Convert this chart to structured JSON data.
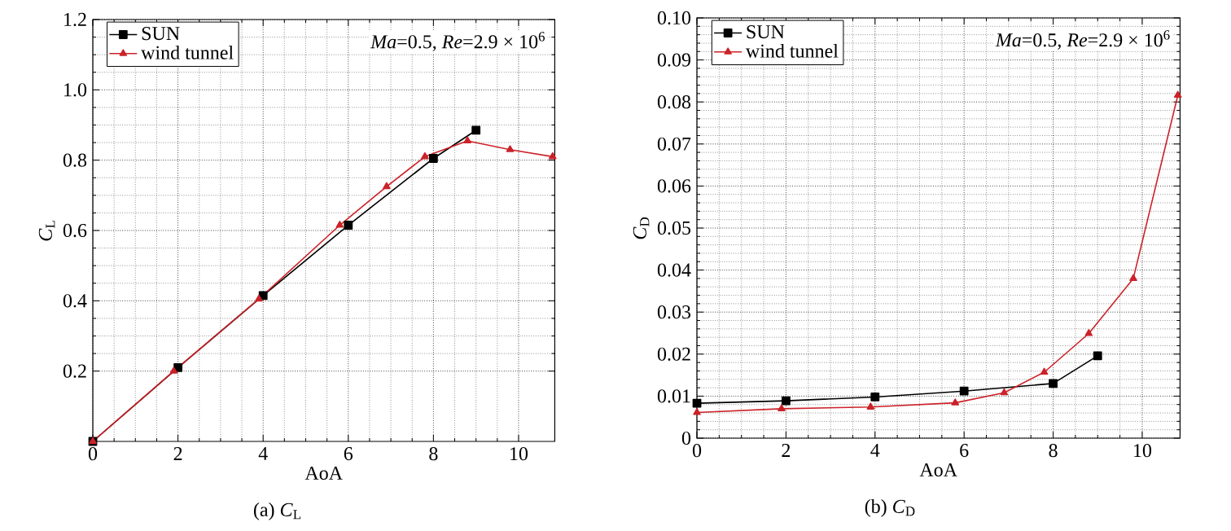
{
  "chart_data": [
    {
      "type": "line",
      "title": "(a) *C*$_{L}$",
      "xlabel": "AoA",
      "ylabel": "*C*$_{L}$",
      "annotations": [
        "*Ma*=0.5, *Re*=2.9 × 10$^{6}$"
      ],
      "xlim": [
        0,
        10.85
      ],
      "ylim": [
        0,
        1.2
      ],
      "xticks": [
        0,
        2,
        4,
        6,
        8,
        10
      ],
      "yticks": [
        0.2,
        0.4,
        0.6,
        0.8,
        {
          "value": 1,
          "label": "1.0"
        },
        1.2
      ],
      "grid": true,
      "legend": "top left",
      "series": [
        {
          "name": "SUN",
          "color": "#000000",
          "marker": "square",
          "x": [
            0,
            2,
            4,
            6,
            8,
            9
          ],
          "values": [
            0,
            0.21,
            0.415,
            0.615,
            0.805,
            0.885
          ]
        },
        {
          "name": "wind tunnel",
          "color": "#cc2229",
          "marker": "triangle",
          "x": [
            0,
            1.9,
            3.9,
            5.8,
            6.9,
            7.8,
            8.8,
            9.8,
            10.8
          ],
          "values": [
            0,
            0.2,
            0.405,
            0.615,
            0.725,
            0.81,
            0.855,
            0.83,
            0.81
          ]
        }
      ]
    },
    {
      "type": "line",
      "title": "(b) *C*$_{D}$",
      "xlabel": "AoA",
      "ylabel": "*C*$_{D}$",
      "annotations": [
        "*Ma*=0.5, *Re*=2.9 × 10$^{6}$"
      ],
      "xlim": [
        0,
        10.85
      ],
      "ylim": [
        0,
        0.1
      ],
      "xticks": [
        0,
        2,
        4,
        6,
        8,
        10
      ],
      "yticks": [
        0,
        0.01,
        0.02,
        0.03,
        0.04,
        0.05,
        0.06,
        0.07,
        0.08,
        0.09,
        {
          "value": 0.1,
          "label": "0.10"
        }
      ],
      "grid": true,
      "legend": "top left",
      "series": [
        {
          "name": "SUN",
          "color": "#000000",
          "marker": "square",
          "x": [
            0,
            2,
            4,
            6,
            8,
            9
          ],
          "values": [
            0.0083,
            0.0089,
            0.0098,
            0.0112,
            0.013,
            0.0196
          ]
        },
        {
          "name": "wind tunnel",
          "color": "#cc2229",
          "marker": "triangle",
          "x": [
            0,
            1.9,
            3.9,
            5.8,
            6.9,
            7.8,
            8.8,
            9.8,
            10.8
          ],
          "values": [
            0.0061,
            0.007,
            0.0074,
            0.0084,
            0.0108,
            0.0157,
            0.0249,
            0.038,
            0.0816
          ]
        }
      ]
    }
  ]
}
